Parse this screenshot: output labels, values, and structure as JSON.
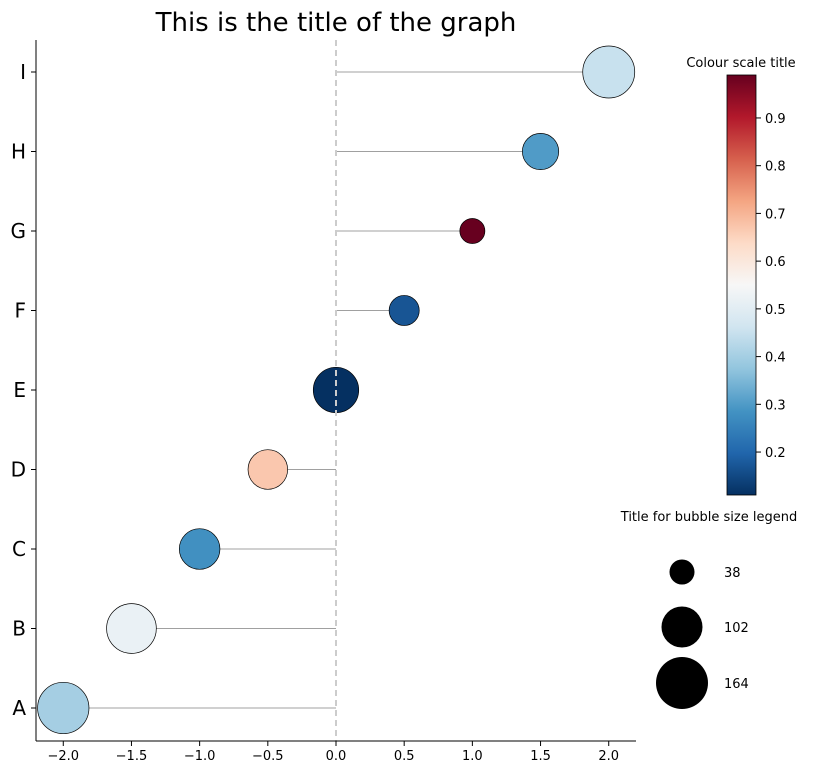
{
  "chart_data": {
    "type": "bubble-lollipop",
    "title": "This is the title of the graph",
    "categories": [
      "A",
      "B",
      "C",
      "D",
      "E",
      "F",
      "G",
      "H",
      "I"
    ],
    "x": [
      -2.0,
      -1.5,
      -1.0,
      -0.5,
      0.0,
      0.5,
      1.0,
      1.5,
      2.0
    ],
    "color_values": [
      0.4,
      0.52,
      0.28,
      0.67,
      0.11,
      0.17,
      0.99,
      0.3,
      0.45
    ],
    "size_values": [
      160,
      150,
      100,
      95,
      125,
      55,
      38,
      80,
      164
    ],
    "xlim": [
      -2.2,
      2.2
    ],
    "xticks": [
      -2.0,
      -1.5,
      -1.0,
      -0.5,
      0.0,
      0.5,
      1.0,
      1.5,
      2.0
    ],
    "xtick_labels": [
      "−2.0",
      "−1.5",
      "−1.0",
      "−0.5",
      "0.0",
      "0.5",
      "1.0",
      "1.5",
      "2.0"
    ],
    "reference_line_x": 0.0,
    "colorbar": {
      "title": "Colour scale title",
      "range": [
        0.11,
        0.99
      ],
      "ticks": [
        0.2,
        0.3,
        0.4,
        0.5,
        0.6,
        0.7,
        0.8,
        0.9
      ],
      "tick_labels": [
        "0.2",
        "0.3",
        "0.4",
        "0.5",
        "0.6",
        "0.7",
        "0.8",
        "0.9"
      ],
      "colormap": "RdBu_r",
      "colormap_stops": [
        "#053061",
        "#2166ac",
        "#4393c3",
        "#92c5de",
        "#d1e5f0",
        "#f7f7f7",
        "#fddbc7",
        "#f4a582",
        "#d6604d",
        "#b2182b",
        "#67001f"
      ]
    },
    "size_legend": {
      "title": "Title for bubble size legend",
      "values": [
        38,
        102,
        164
      ],
      "labels": [
        "38",
        "102",
        "164"
      ]
    },
    "colors": {
      "stem": "#a0a0a0",
      "reference_line": "#cccccc",
      "bubble_edge": "#000000",
      "legend_bubble": "#000000"
    }
  }
}
